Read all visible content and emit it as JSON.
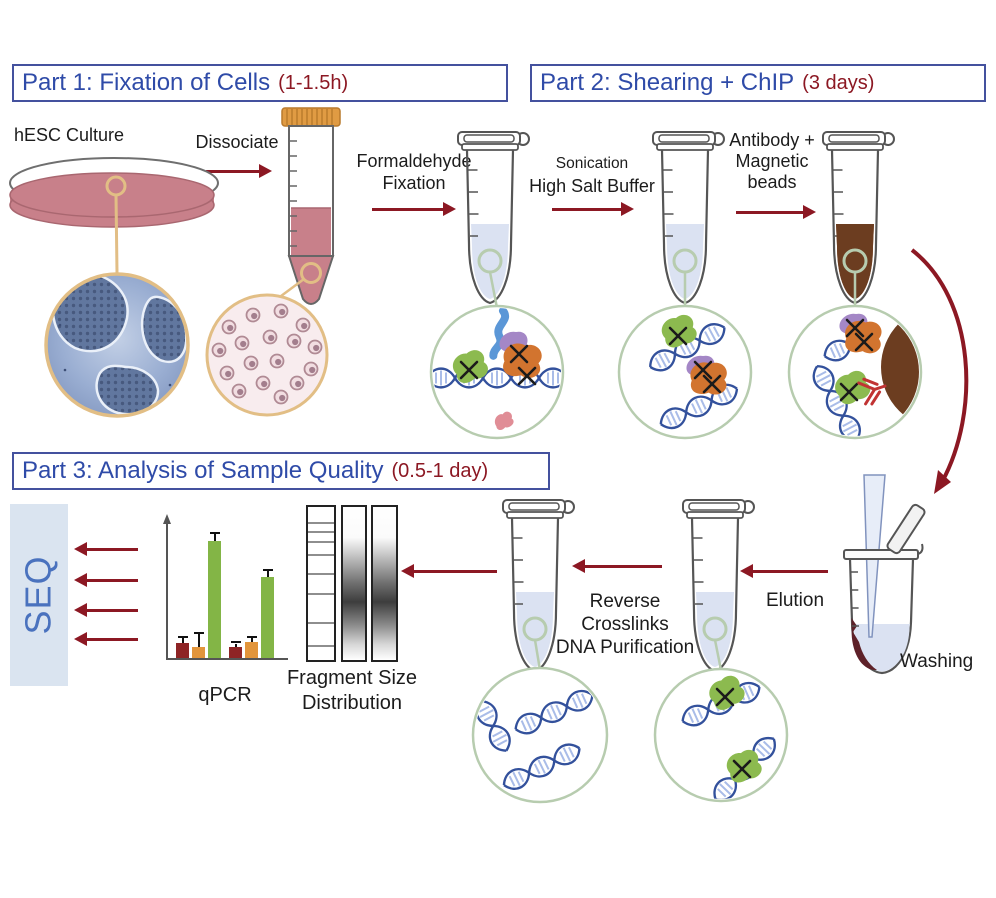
{
  "parts": {
    "p1": {
      "title": "Part 1: Fixation of Cells",
      "duration": "(1-1.5h)"
    },
    "p2": {
      "title": "Part 2: Shearing + ChIP",
      "duration": "(3 days)"
    },
    "p3": {
      "title": "Part 3: Analysis of Sample Quality",
      "duration": "(0.5-1 day)"
    }
  },
  "labels": {
    "hesc_culture": "hESC Culture",
    "dissociate": "Dissociate",
    "formaldehyde_line1": "Formaldehyde",
    "formaldehyde_line2": "Fixation",
    "sonication_line1": "Sonication",
    "sonication_line2": "High Salt Buffer",
    "antibody_line1": "Antibody +",
    "antibody_line2": "Magnetic",
    "antibody_line3": "beads",
    "washing": "Washing",
    "elution": "Elution",
    "reverse_line1": "Reverse",
    "reverse_line2": "Crosslinks",
    "reverse_line3": "DNA Purification",
    "seq": "SEQ",
    "qpcr_caption": "qPCR",
    "fragment_line1": "Fragment Size",
    "fragment_line2": "Distribution"
  },
  "colors": {
    "arrow_maroon": "#8C1823",
    "title_blue": "#2F4BA8",
    "duration_red": "#8C1823",
    "box_border": "#44519E",
    "seq_panel_bg": "#DAE4F0",
    "seq_text": "#4A72BE",
    "tube_liquid_blue": "#DBE2F2",
    "bead_brown": "#6C3D20",
    "dish_pink": "#C8808A",
    "inset_ring_green": "#B7CCAF",
    "magnifier_ring_tan": "#E2BE85"
  },
  "chart_data": {
    "type": "bar",
    "title": "qPCR",
    "categories": [
      "group 1",
      "group 2"
    ],
    "series": [
      {
        "name": "dark-red",
        "color": "#8E2425",
        "values": [
          11,
          8
        ],
        "errors": [
          4,
          3
        ]
      },
      {
        "name": "orange",
        "color": "#E2953B",
        "values": [
          8,
          12
        ],
        "errors": [
          10,
          3
        ]
      },
      {
        "name": "green",
        "color": "#83B546",
        "values": [
          89,
          61
        ],
        "errors": [
          5,
          5
        ]
      }
    ],
    "ylim": [
      0,
      100
    ],
    "axis_tick_labels_visible": false,
    "legend": "none"
  },
  "gel": {
    "lanes": [
      "ladder",
      "sample-smear",
      "sample-smear"
    ],
    "ladder_band_positions": [
      0.1,
      0.16,
      0.22,
      0.31,
      0.43,
      0.56,
      0.75,
      0.9
    ]
  }
}
